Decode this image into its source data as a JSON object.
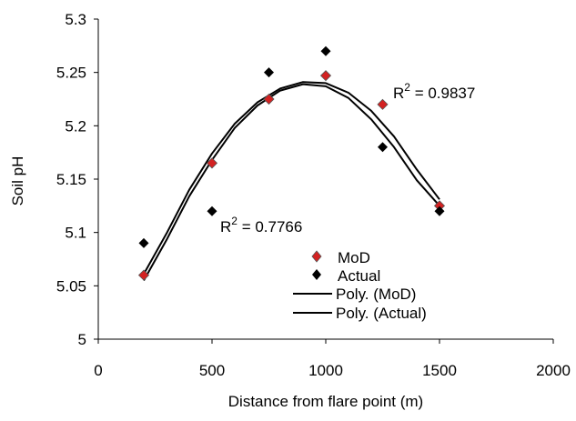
{
  "chart_data": {
    "type": "scatter",
    "xlabel": "Distance from flare point (m)",
    "ylabel": "Soil pH",
    "xlim": [
      0,
      2000
    ],
    "ylim": [
      5,
      5.3
    ],
    "xticks": [
      "0",
      "500",
      "1000",
      "1500",
      "2000"
    ],
    "yticks": [
      "5",
      "5.05",
      "5.1",
      "5.15",
      "5.2",
      "5.25",
      "5.3"
    ],
    "grid": false,
    "legend_position": "center-right",
    "series": [
      {
        "name": "MoD",
        "marker": "diamond",
        "color": "#d32222",
        "x": [
          200,
          500,
          750,
          1000,
          1250,
          1500
        ],
        "y": [
          5.06,
          5.165,
          5.225,
          5.247,
          5.22,
          5.125
        ]
      },
      {
        "name": "Actual",
        "marker": "diamond",
        "color": "#000000",
        "x": [
          200,
          500,
          750,
          1000,
          1250,
          1500
        ],
        "y": [
          5.09,
          5.12,
          5.25,
          5.27,
          5.18,
          5.12
        ]
      }
    ],
    "trendlines": [
      {
        "name": "Poly. (MoD)",
        "type": "polynomial",
        "x": [
          200,
          300,
          400,
          500,
          600,
          700,
          800,
          900,
          1000,
          1100,
          1200,
          1300,
          1400,
          1500
        ],
        "y": [
          5.061,
          5.099,
          5.14,
          5.174,
          5.202,
          5.222,
          5.235,
          5.241,
          5.24,
          5.231,
          5.214,
          5.19,
          5.159,
          5.131
        ]
      },
      {
        "name": "Poly. (Actual)",
        "type": "polynomial",
        "x": [
          200,
          300,
          400,
          500,
          600,
          700,
          800,
          900,
          1000,
          1100,
          1200,
          1300,
          1400,
          1500
        ],
        "y": [
          5.055,
          5.093,
          5.134,
          5.168,
          5.198,
          5.219,
          5.233,
          5.239,
          5.237,
          5.226,
          5.206,
          5.18,
          5.149,
          5.125
        ]
      }
    ],
    "annotations": [
      {
        "prefix": "R",
        "sup": "2",
        "suffix": " = 0.9837"
      },
      {
        "prefix": "R",
        "sup": "2",
        "suffix": " = 0.7766"
      }
    ]
  }
}
